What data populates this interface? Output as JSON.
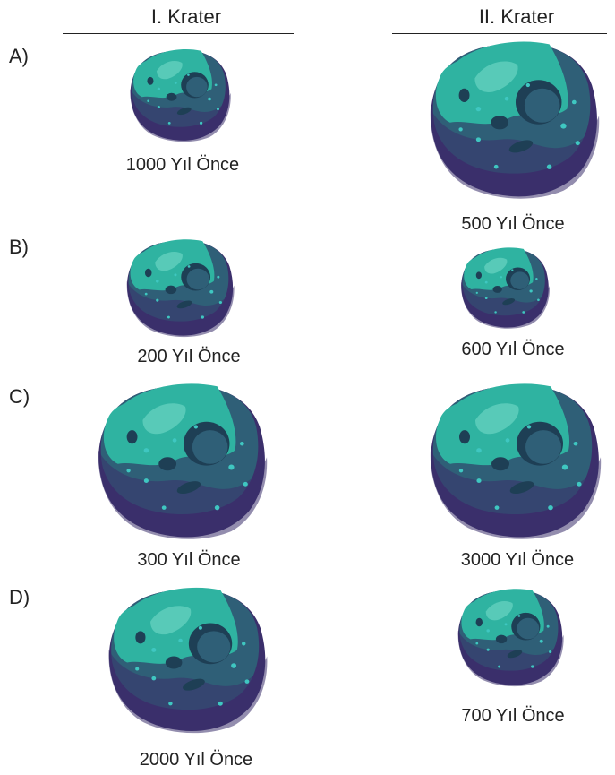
{
  "headers": [
    "I. Krater",
    "II. Krater"
  ],
  "options": [
    {
      "letter": "A)",
      "crater_1": {
        "age": "1000 Yıl Önce",
        "size": "small"
      },
      "crater_2": {
        "age": "500 Yıl Önce",
        "size": "large"
      }
    },
    {
      "letter": "B)",
      "crater_1": {
        "age": "200 Yıl Önce",
        "size": "small"
      },
      "crater_2": {
        "age": "600 Yıl Önce",
        "size": "small"
      }
    },
    {
      "letter": "C)",
      "crater_1": {
        "age": "300 Yıl Önce",
        "size": "large"
      },
      "crater_2": {
        "age": "3000 Yıl Önce",
        "size": "large"
      }
    },
    {
      "letter": "D)",
      "crater_1": {
        "age": "2000 Yıl Önce",
        "size": "large"
      },
      "crater_2": {
        "age": "700 Yıl Önce",
        "size": "small"
      }
    }
  ],
  "colors": {
    "shadow": "#3b2f6b",
    "body": "#2f5f77",
    "light": "#2fb3a1",
    "highlight": "#6fd7c4",
    "pit": "#1e3f55",
    "dots": "#3fc7c1"
  }
}
